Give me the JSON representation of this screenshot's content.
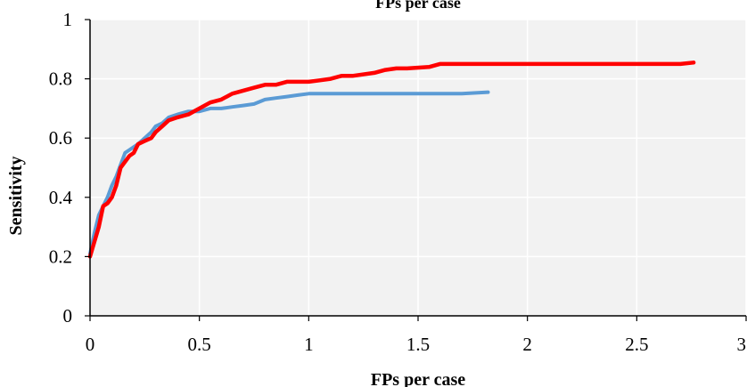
{
  "chart_data": {
    "type": "line",
    "title": "FPs per case",
    "xlabel": "FPs per case",
    "ylabel": "Sensitivity",
    "xlim": [
      0,
      3
    ],
    "ylim": [
      0,
      1
    ],
    "x_ticks": [
      "0",
      "0.5",
      "1",
      "1.5",
      "2",
      "2.5",
      "3"
    ],
    "y_ticks": [
      "0",
      "0.2",
      "0.4",
      "0.6",
      "0.8",
      "1"
    ],
    "grid": true,
    "legend": "none",
    "plot_background": "#f2f2f2",
    "series": [
      {
        "color": "#5b9bd5",
        "x": [
          0,
          0.02,
          0.04,
          0.06,
          0.08,
          0.1,
          0.12,
          0.14,
          0.16,
          0.18,
          0.2,
          0.22,
          0.25,
          0.28,
          0.3,
          0.33,
          0.36,
          0.4,
          0.45,
          0.5,
          0.55,
          0.6,
          0.65,
          0.7,
          0.75,
          0.8,
          0.85,
          0.9,
          0.95,
          1.0,
          1.1,
          1.2,
          1.3,
          1.4,
          1.5,
          1.6,
          1.7,
          1.82
        ],
        "y": [
          0.21,
          0.28,
          0.34,
          0.37,
          0.4,
          0.44,
          0.47,
          0.51,
          0.55,
          0.56,
          0.57,
          0.58,
          0.6,
          0.62,
          0.64,
          0.65,
          0.67,
          0.68,
          0.69,
          0.69,
          0.7,
          0.7,
          0.705,
          0.71,
          0.715,
          0.73,
          0.735,
          0.74,
          0.745,
          0.75,
          0.75,
          0.75,
          0.75,
          0.75,
          0.75,
          0.75,
          0.75,
          0.755
        ]
      },
      {
        "color": "#ff0000",
        "x": [
          0,
          0.02,
          0.04,
          0.06,
          0.08,
          0.1,
          0.12,
          0.14,
          0.16,
          0.18,
          0.2,
          0.22,
          0.25,
          0.28,
          0.3,
          0.33,
          0.36,
          0.4,
          0.45,
          0.5,
          0.55,
          0.6,
          0.65,
          0.7,
          0.75,
          0.8,
          0.85,
          0.9,
          0.95,
          1.0,
          1.05,
          1.1,
          1.15,
          1.2,
          1.3,
          1.35,
          1.4,
          1.45,
          1.55,
          1.6,
          1.65,
          1.8,
          2.0,
          2.2,
          2.4,
          2.6,
          2.7,
          2.76
        ],
        "y": [
          0.2,
          0.25,
          0.3,
          0.37,
          0.38,
          0.4,
          0.44,
          0.5,
          0.52,
          0.54,
          0.55,
          0.58,
          0.59,
          0.6,
          0.62,
          0.64,
          0.66,
          0.67,
          0.68,
          0.7,
          0.72,
          0.73,
          0.75,
          0.76,
          0.77,
          0.78,
          0.78,
          0.79,
          0.79,
          0.79,
          0.795,
          0.8,
          0.81,
          0.81,
          0.82,
          0.83,
          0.835,
          0.835,
          0.84,
          0.85,
          0.85,
          0.85,
          0.85,
          0.85,
          0.85,
          0.85,
          0.85,
          0.855
        ]
      }
    ]
  }
}
